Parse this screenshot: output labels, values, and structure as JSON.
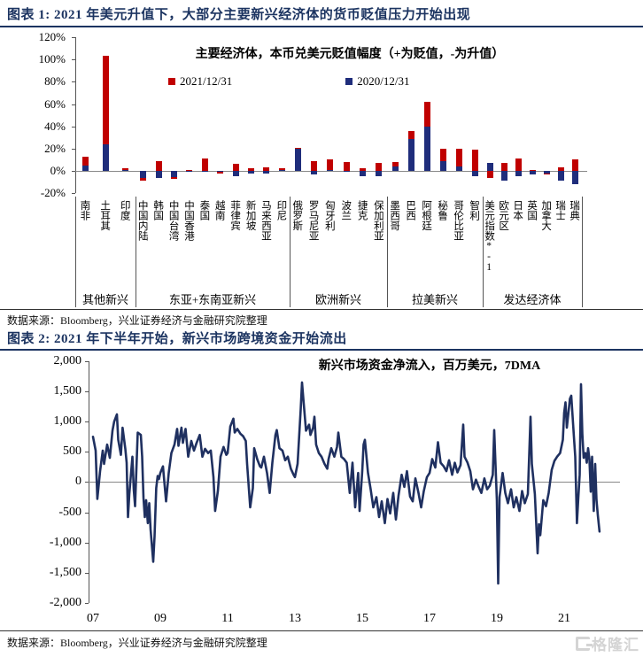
{
  "fig1_header": "图表 1:  2021 年美元升值下，大部分主要新兴经济体的货币贬值压力开始出现",
  "fig2_header": "图表 2:  2021 年下半年开始，新兴市场跨境资金开始流出",
  "source_note": "数据来源：Bloomberg，兴业证券经济与金融研究院整理",
  "watermark": "格隆汇",
  "chart_data": [
    {
      "type": "bar",
      "stacked": true,
      "title": "主要经济体，本币兑美元贬值幅度（+为贬值，-为升值）",
      "legend": [
        "2021/12/31",
        "2020/12/31"
      ],
      "colors": {
        "y2021": "#c00000",
        "y2020": "#1f2d7b"
      },
      "unit": "%",
      "ylim": [
        -25,
        120
      ],
      "y_ticks": [
        "120%",
        "100%",
        "80%",
        "60%",
        "40%",
        "20%",
        "0%",
        "-20%"
      ],
      "groups": [
        {
          "label": "其他新兴",
          "items": [
            {
              "name": "南非",
              "v2021": 8,
              "v2020": 5
            },
            {
              "name": "土耳其",
              "v2021": 79,
              "v2020": 24
            },
            {
              "name": "印度",
              "v2021": 1.5,
              "v2020": 1
            }
          ]
        },
        {
          "label": "东亚+东南亚新兴",
          "items": [
            {
              "name": "中国内陆",
              "v2021": -2.5,
              "v2020": -6
            },
            {
              "name": "韩国",
              "v2021": 9,
              "v2020": -6
            },
            {
              "name": "中国台湾",
              "v2021": -1.5,
              "v2020": -5.5
            },
            {
              "name": "中国香港",
              "v2021": 0.5,
              "v2020": -0.5
            },
            {
              "name": "泰国",
              "v2021": 11,
              "v2020": -0.5
            },
            {
              "name": "越南",
              "v2021": -1.5,
              "v2020": -0.5
            },
            {
              "name": "菲律宾",
              "v2021": 6,
              "v2020": -5
            },
            {
              "name": "新加坡",
              "v2021": 2,
              "v2020": -2
            },
            {
              "name": "马来西亚",
              "v2021": 3.5,
              "v2020": -2
            },
            {
              "name": "印尼",
              "v2021": 1.5,
              "v2020": 1
            }
          ]
        },
        {
          "label": "欧洲新兴",
          "items": [
            {
              "name": "俄罗斯",
              "v2021": 1,
              "v2020": 20
            },
            {
              "name": "罗马尼亚",
              "v2021": 9,
              "v2020": -3
            },
            {
              "name": "匈牙利",
              "v2021": 9,
              "v2020": 1
            },
            {
              "name": "波兰",
              "v2021": 8,
              "v2020": -1
            },
            {
              "name": "捷克",
              "v2021": 2,
              "v2020": -5
            },
            {
              "name": "保加利亚",
              "v2021": 7,
              "v2020": -5
            }
          ]
        },
        {
          "label": "拉美新兴",
          "items": [
            {
              "name": "墨西哥",
              "v2021": 4,
              "v2020": 4
            },
            {
              "name": "巴西",
              "v2021": 7,
              "v2020": 29
            },
            {
              "name": "阿根廷",
              "v2021": 22,
              "v2020": 40
            },
            {
              "name": "秘鲁",
              "v2021": 11,
              "v2020": 9
            },
            {
              "name": "哥伦比亚",
              "v2021": 16,
              "v2020": 4
            },
            {
              "name": "智利",
              "v2021": 19,
              "v2020": -5
            }
          ]
        },
        {
          "label": "发达经济体",
          "items": [
            {
              "name": "美元指数*-1",
              "v2021": -6,
              "v2020": 7
            },
            {
              "name": "欧元区",
              "v2021": 7,
              "v2020": -9
            },
            {
              "name": "日本",
              "v2021": 11.5,
              "v2020": -5
            },
            {
              "name": "英国",
              "v2021": 1,
              "v2020": -3
            },
            {
              "name": "加拿大",
              "v2021": -0.8,
              "v2020": -2
            },
            {
              "name": "瑞士",
              "v2021": 3,
              "v2020": -9
            },
            {
              "name": "瑞典",
              "v2021": 10,
              "v2020": -12
            }
          ]
        }
      ]
    },
    {
      "type": "line",
      "title": "新兴市场资金净流入，百万美元，7DMA",
      "color": "#1f3060",
      "ylim": [
        -2000,
        2000
      ],
      "y_ticks": [
        "2,000",
        "1,500",
        "1,000",
        "500",
        "0",
        "-500",
        "-1,000",
        "-1,500",
        "-2,000"
      ],
      "x_ticks": [
        "07",
        "09",
        "11",
        "13",
        "15",
        "17",
        "19",
        "21"
      ],
      "points": [
        [
          2007.0,
          750
        ],
        [
          2007.08,
          520
        ],
        [
          2007.13,
          -280
        ],
        [
          2007.21,
          180
        ],
        [
          2007.29,
          520
        ],
        [
          2007.33,
          300
        ],
        [
          2007.42,
          620
        ],
        [
          2007.5,
          400
        ],
        [
          2007.58,
          850
        ],
        [
          2007.63,
          1000
        ],
        [
          2007.71,
          1120
        ],
        [
          2007.75,
          700
        ],
        [
          2007.83,
          450
        ],
        [
          2007.88,
          900
        ],
        [
          2007.96,
          550
        ],
        [
          2008.0,
          320
        ],
        [
          2008.04,
          -580
        ],
        [
          2008.08,
          -200
        ],
        [
          2008.17,
          420
        ],
        [
          2008.21,
          -120
        ],
        [
          2008.25,
          -400
        ],
        [
          2008.33,
          820
        ],
        [
          2008.42,
          780
        ],
        [
          2008.46,
          420
        ],
        [
          2008.5,
          -260
        ],
        [
          2008.54,
          -580
        ],
        [
          2008.58,
          -300
        ],
        [
          2008.63,
          -680
        ],
        [
          2008.67,
          -350
        ],
        [
          2008.71,
          -780
        ],
        [
          2008.79,
          -1320
        ],
        [
          2008.83,
          -900
        ],
        [
          2008.88,
          -100
        ],
        [
          2008.92,
          100
        ],
        [
          2008.96,
          50
        ],
        [
          2009.0,
          150
        ],
        [
          2009.08,
          260
        ],
        [
          2009.17,
          -320
        ],
        [
          2009.25,
          150
        ],
        [
          2009.33,
          480
        ],
        [
          2009.42,
          620
        ],
        [
          2009.5,
          880
        ],
        [
          2009.54,
          600
        ],
        [
          2009.63,
          900
        ],
        [
          2009.67,
          650
        ],
        [
          2009.75,
          880
        ],
        [
          2009.83,
          420
        ],
        [
          2009.92,
          680
        ],
        [
          2010.0,
          520
        ],
        [
          2010.08,
          650
        ],
        [
          2010.17,
          780
        ],
        [
          2010.25,
          420
        ],
        [
          2010.33,
          550
        ],
        [
          2010.42,
          480
        ],
        [
          2010.5,
          520
        ],
        [
          2010.58,
          80
        ],
        [
          2010.63,
          -480
        ],
        [
          2010.71,
          -150
        ],
        [
          2010.79,
          420
        ],
        [
          2010.88,
          580
        ],
        [
          2010.96,
          450
        ],
        [
          2011.0,
          480
        ],
        [
          2011.08,
          920
        ],
        [
          2011.17,
          1050
        ],
        [
          2011.21,
          820
        ],
        [
          2011.29,
          880
        ],
        [
          2011.38,
          800
        ],
        [
          2011.46,
          760
        ],
        [
          2011.54,
          680
        ],
        [
          2011.58,
          300
        ],
        [
          2011.67,
          -420
        ],
        [
          2011.75,
          -100
        ],
        [
          2011.79,
          560
        ],
        [
          2011.88,
          380
        ],
        [
          2011.96,
          260
        ],
        [
          2012.0,
          240
        ],
        [
          2012.08,
          420
        ],
        [
          2012.17,
          150
        ],
        [
          2012.25,
          -180
        ],
        [
          2012.33,
          320
        ],
        [
          2012.42,
          780
        ],
        [
          2012.46,
          860
        ],
        [
          2012.54,
          560
        ],
        [
          2012.63,
          520
        ],
        [
          2012.71,
          360
        ],
        [
          2012.79,
          420
        ],
        [
          2012.88,
          220
        ],
        [
          2012.96,
          120
        ],
        [
          2013.0,
          80
        ],
        [
          2013.08,
          300
        ],
        [
          2013.17,
          1200
        ],
        [
          2013.21,
          1650
        ],
        [
          2013.25,
          1380
        ],
        [
          2013.33,
          850
        ],
        [
          2013.42,
          950
        ],
        [
          2013.46,
          780
        ],
        [
          2013.54,
          900
        ],
        [
          2013.58,
          1080
        ],
        [
          2013.63,
          620
        ],
        [
          2013.71,
          480
        ],
        [
          2013.79,
          420
        ],
        [
          2013.88,
          300
        ],
        [
          2013.96,
          220
        ],
        [
          2014.0,
          380
        ],
        [
          2014.08,
          560
        ],
        [
          2014.17,
          420
        ],
        [
          2014.25,
          580
        ],
        [
          2014.29,
          820
        ],
        [
          2014.38,
          420
        ],
        [
          2014.46,
          380
        ],
        [
          2014.54,
          320
        ],
        [
          2014.63,
          -180
        ],
        [
          2014.71,
          320
        ],
        [
          2014.79,
          -420
        ],
        [
          2014.88,
          150
        ],
        [
          2014.92,
          -480
        ],
        [
          2015.0,
          180
        ],
        [
          2015.04,
          620
        ],
        [
          2015.08,
          700
        ],
        [
          2015.17,
          150
        ],
        [
          2015.25,
          -120
        ],
        [
          2015.33,
          -420
        ],
        [
          2015.42,
          -250
        ],
        [
          2015.5,
          -580
        ],
        [
          2015.58,
          -320
        ],
        [
          2015.67,
          -680
        ],
        [
          2015.75,
          -280
        ],
        [
          2015.83,
          -520
        ],
        [
          2015.92,
          -180
        ],
        [
          2016.0,
          -620
        ],
        [
          2016.08,
          -220
        ],
        [
          2016.17,
          120
        ],
        [
          2016.25,
          -80
        ],
        [
          2016.33,
          180
        ],
        [
          2016.42,
          -240
        ],
        [
          2016.5,
          -320
        ],
        [
          2016.58,
          60
        ],
        [
          2016.67,
          -180
        ],
        [
          2016.75,
          -420
        ],
        [
          2016.83,
          -150
        ],
        [
          2016.92,
          80
        ],
        [
          2017.0,
          150
        ],
        [
          2017.08,
          380
        ],
        [
          2017.17,
          240
        ],
        [
          2017.25,
          660
        ],
        [
          2017.33,
          320
        ],
        [
          2017.42,
          260
        ],
        [
          2017.5,
          180
        ],
        [
          2017.58,
          360
        ],
        [
          2017.67,
          120
        ],
        [
          2017.75,
          320
        ],
        [
          2017.83,
          160
        ],
        [
          2017.92,
          280
        ],
        [
          2018.0,
          950
        ],
        [
          2018.04,
          420
        ],
        [
          2018.13,
          320
        ],
        [
          2018.21,
          180
        ],
        [
          2018.29,
          -120
        ],
        [
          2018.38,
          40
        ],
        [
          2018.46,
          -80
        ],
        [
          2018.54,
          -180
        ],
        [
          2018.63,
          60
        ],
        [
          2018.71,
          -120
        ],
        [
          2018.79,
          -60
        ],
        [
          2018.88,
          120
        ],
        [
          2018.92,
          860
        ],
        [
          2019.0,
          -300
        ],
        [
          2019.04,
          -1680
        ],
        [
          2019.08,
          -250
        ],
        [
          2019.17,
          150
        ],
        [
          2019.25,
          -180
        ],
        [
          2019.33,
          -350
        ],
        [
          2019.42,
          -120
        ],
        [
          2019.5,
          -420
        ],
        [
          2019.58,
          -250
        ],
        [
          2019.67,
          -480
        ],
        [
          2019.75,
          -150
        ],
        [
          2019.83,
          -350
        ],
        [
          2019.92,
          -200
        ],
        [
          2020.0,
          1080
        ],
        [
          2020.04,
          300
        ],
        [
          2020.13,
          -200
        ],
        [
          2020.21,
          -1180
        ],
        [
          2020.25,
          -700
        ],
        [
          2020.29,
          -880
        ],
        [
          2020.38,
          -300
        ],
        [
          2020.46,
          -400
        ],
        [
          2020.54,
          -180
        ],
        [
          2020.63,
          200
        ],
        [
          2020.71,
          350
        ],
        [
          2020.79,
          420
        ],
        [
          2020.88,
          480
        ],
        [
          2020.96,
          700
        ],
        [
          2021.0,
          1150
        ],
        [
          2021.04,
          1320
        ],
        [
          2021.08,
          900
        ],
        [
          2021.17,
          1380
        ],
        [
          2021.21,
          1430
        ],
        [
          2021.29,
          750
        ],
        [
          2021.33,
          420
        ],
        [
          2021.38,
          -680
        ],
        [
          2021.42,
          -250
        ],
        [
          2021.46,
          120
        ],
        [
          2021.5,
          1620
        ],
        [
          2021.54,
          800
        ],
        [
          2021.58,
          400
        ],
        [
          2021.63,
          480
        ],
        [
          2021.67,
          320
        ],
        [
          2021.71,
          560
        ],
        [
          2021.75,
          380
        ],
        [
          2021.79,
          -160
        ],
        [
          2021.83,
          420
        ],
        [
          2021.88,
          -480
        ],
        [
          2021.92,
          300
        ],
        [
          2021.96,
          -300
        ],
        [
          2022.0,
          -550
        ],
        [
          2022.05,
          -820
        ]
      ]
    }
  ]
}
